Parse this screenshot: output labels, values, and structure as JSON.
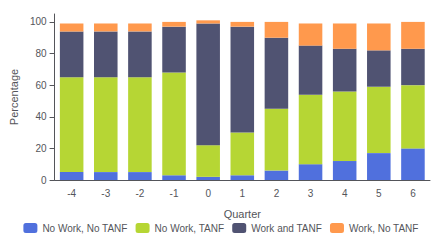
{
  "chart_data": {
    "type": "bar",
    "stacked": true,
    "xlabel": "Quarter",
    "ylabel": "Percentage",
    "categories": [
      "-4",
      "-3",
      "-2",
      "-1",
      "0",
      "1",
      "2",
      "3",
      "4",
      "5",
      "6"
    ],
    "series": [
      {
        "name": "No Work, No TANF",
        "values": [
          5,
          5,
          5,
          3,
          2,
          3,
          6,
          10,
          12,
          17,
          20
        ]
      },
      {
        "name": "No Work, TANF",
        "values": [
          60,
          60,
          60,
          65,
          20,
          27,
          39,
          44,
          44,
          42,
          40
        ]
      },
      {
        "name": "Work and TANF",
        "values": [
          29,
          29,
          29,
          29,
          77,
          67,
          45,
          31,
          27,
          23,
          23
        ]
      },
      {
        "name": "Work, No TANF",
        "values": [
          5,
          5,
          5,
          3,
          2,
          3,
          10,
          14,
          16,
          17,
          17
        ]
      }
    ],
    "ylim": [
      0,
      105
    ],
    "yticks": [
      0,
      20,
      40,
      60,
      80,
      100
    ],
    "grid": false,
    "legend": "bottom"
  }
}
